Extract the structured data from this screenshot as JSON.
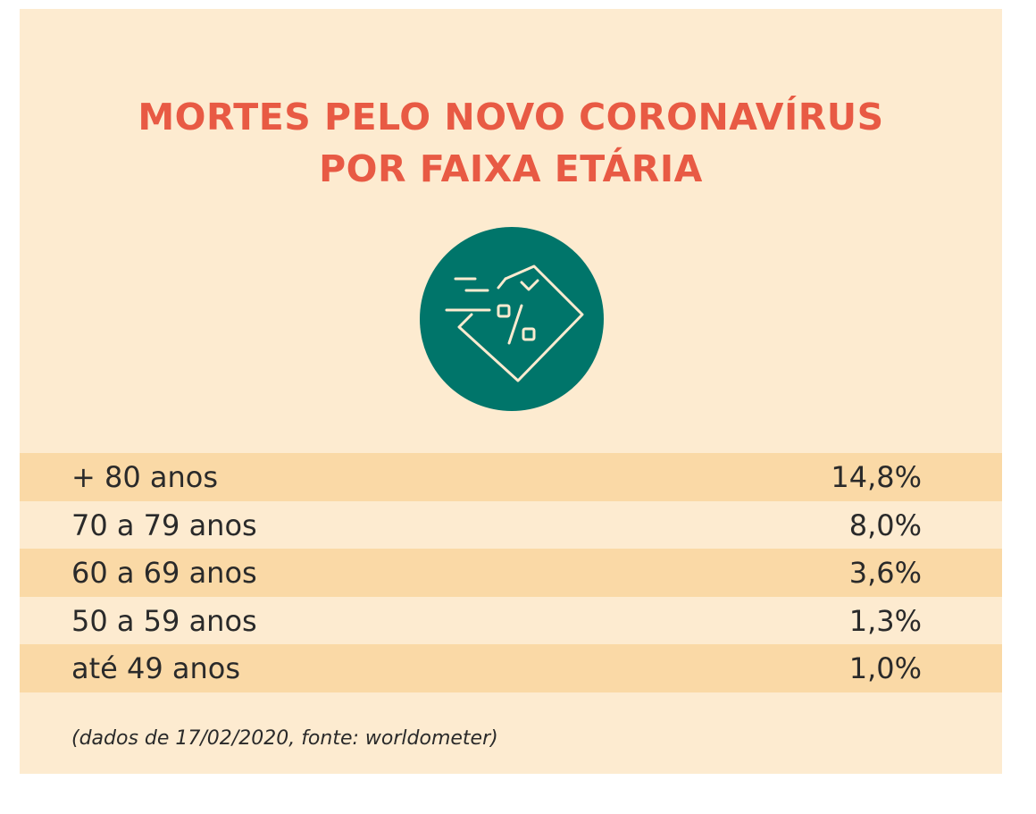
{
  "title_lines": [
    "MORTES PELO NOVO CORONAVÍRUS",
    "POR FAIXA ETÁRIA"
  ],
  "icon": "price-tag-percent-icon",
  "colors": {
    "background": "#fdebd0",
    "row_highlight": "#fad9a6",
    "title": "#e85a44",
    "icon_circle": "#00756a",
    "icon_stroke": "#fdebd0",
    "text": "#2a2a2a"
  },
  "chart_data": {
    "type": "table",
    "title": "MORTES PELO NOVO CORONAVÍRUS POR FAIXA ETÁRIA",
    "columns": [
      "",
      ""
    ],
    "rows": [
      {
        "label": "+ 80 anos",
        "value": "14,8%",
        "percent": 14.8
      },
      {
        "label": "70 a 79 anos",
        "value": "8,0%",
        "percent": 8.0
      },
      {
        "label": "60 a 69 anos",
        "value": "3,6%",
        "percent": 3.6
      },
      {
        "label": "50 a 59 anos",
        "value": "1,3%",
        "percent": 1.3
      },
      {
        "label": "até 49 anos",
        "value": "1,0%",
        "percent": 1.0
      }
    ]
  },
  "footnote": "(dados de 17/02/2020, fonte: worldometer)"
}
